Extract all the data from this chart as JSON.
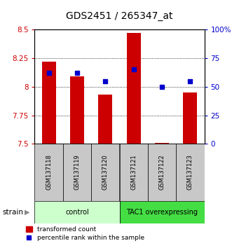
{
  "title": "GDS2451 / 265347_at",
  "samples": [
    "GSM137118",
    "GSM137119",
    "GSM137120",
    "GSM137121",
    "GSM137122",
    "GSM137123"
  ],
  "transformed_counts": [
    8.22,
    8.09,
    7.93,
    8.47,
    7.51,
    7.95
  ],
  "percentile_ranks": [
    62,
    62,
    55,
    65,
    50,
    55
  ],
  "ylim_left": [
    7.5,
    8.5
  ],
  "ylim_right": [
    0,
    100
  ],
  "yticks_left": [
    7.5,
    7.75,
    8.0,
    8.25,
    8.5
  ],
  "ytick_labels_left": [
    "7.5",
    "7.75",
    "8",
    "8.25",
    "8.5"
  ],
  "yticks_right": [
    0,
    25,
    50,
    75,
    100
  ],
  "ytick_labels_right": [
    "0",
    "25",
    "50",
    "75",
    "100%"
  ],
  "bar_color": "#cc0000",
  "dot_color": "#0000cc",
  "bar_width": 0.5,
  "bar_bottom": 7.5,
  "group_info": [
    {
      "label": "control",
      "start": 0,
      "end": 2,
      "color": "#ccffcc"
    },
    {
      "label": "TAC1 overexpressing",
      "start": 3,
      "end": 5,
      "color": "#44dd44"
    }
  ],
  "legend_bar_label": "transformed count",
  "legend_dot_label": "percentile rank within the sample",
  "strain_label": "strain",
  "grid_lines": [
    7.75,
    8.0,
    8.25
  ],
  "tick_label_color_left": "#cc0000",
  "tick_label_color_right": "#0000cc"
}
